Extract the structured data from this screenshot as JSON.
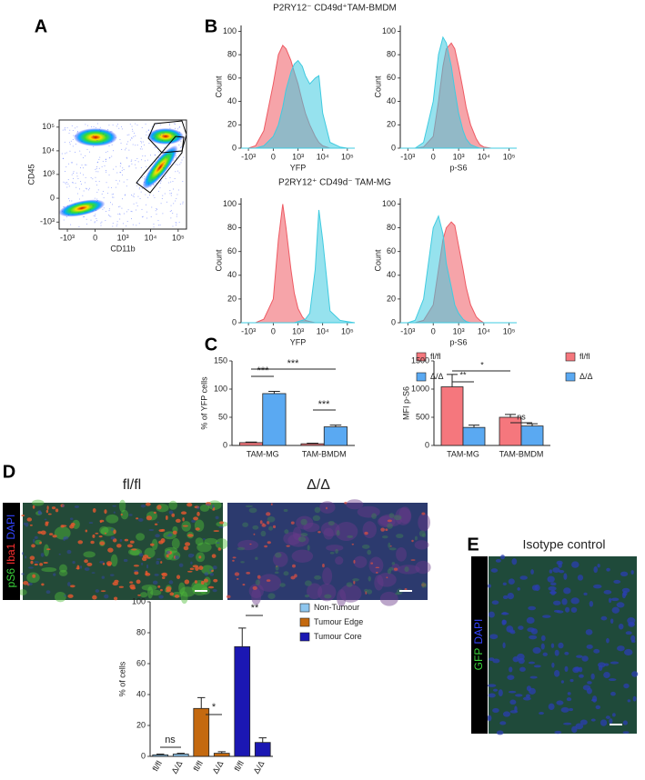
{
  "panel_labels": [
    "A",
    "B",
    "C",
    "D",
    "E"
  ],
  "section_titles": [
    "P2RY12⁻ CD49d⁺TAM-BMDM",
    "P2RY12⁺ CD49d⁻ TAM-MG"
  ],
  "chart_data": [
    {
      "type": "density",
      "x_label": "CD11b",
      "y_label": "CD45",
      "xscale": "symlog",
      "yscale": "symlog",
      "xlim": [
        -2000,
        200000
      ],
      "ylim": [
        -2000,
        200000
      ],
      "xticks": [
        {
          "value": -1000,
          "label": "-10³"
        },
        0,
        {
          "value": 1000,
          "label": "10³"
        },
        {
          "value": 10000,
          "label": "10⁴"
        },
        {
          "value": 100000,
          "label": "10⁵"
        }
      ],
      "yticks": [
        {
          "value": -1000,
          "label": "-10³"
        },
        0,
        {
          "value": 1000,
          "label": "10³"
        },
        {
          "value": 10000,
          "label": "10⁴"
        },
        {
          "value": 100000,
          "label": "10⁵"
        }
      ]
    },
    {
      "type": "area",
      "x_label": "YFP",
      "y_label": "Count",
      "xscale": "symlog",
      "xlim": [
        -2000,
        200000
      ],
      "ylim": [
        0,
        105
      ],
      "xticks": [
        {
          "value": -1000,
          "label": "-10³"
        },
        0,
        {
          "value": 1000,
          "label": "10³"
        },
        {
          "value": 10000,
          "label": "10⁴"
        },
        {
          "value": 100000,
          "label": "10⁵"
        }
      ],
      "yticks": [
        0,
        20,
        40,
        60,
        80,
        100
      ],
      "x": [
        -2000,
        -1000,
        -500,
        -200,
        0,
        100,
        200,
        300,
        500,
        700,
        1000,
        1500,
        2000,
        3000,
        5000,
        7000,
        10000,
        20000,
        50000,
        100000,
        200000
      ],
      "series": [
        {
          "color": "#ee5a63",
          "values": [
            0,
            0,
            2,
            15,
            55,
            80,
            88,
            85,
            75,
            65,
            55,
            40,
            30,
            20,
            10,
            5,
            2,
            0,
            0,
            0,
            0
          ]
        },
        {
          "color": "#3fcbe0",
          "values": [
            0,
            0,
            0,
            2,
            10,
            20,
            35,
            50,
            65,
            72,
            75,
            70,
            62,
            55,
            60,
            62,
            30,
            5,
            1,
            0,
            0
          ]
        }
      ]
    },
    {
      "type": "area",
      "x_label": "p-S6",
      "y_label": "Count",
      "xscale": "symlog",
      "xlim": [
        -2000,
        200000
      ],
      "ylim": [
        0,
        105
      ],
      "xticks": [
        {
          "value": -1000,
          "label": "-10³"
        },
        0,
        {
          "value": 1000,
          "label": "10³"
        },
        {
          "value": 10000,
          "label": "10⁴"
        },
        {
          "value": 100000,
          "label": "10⁵"
        }
      ],
      "yticks": [
        0,
        20,
        40,
        60,
        80,
        100
      ],
      "x": [
        -2000,
        -1000,
        -500,
        -200,
        0,
        100,
        200,
        300,
        500,
        700,
        1000,
        1500,
        2000,
        3000,
        5000,
        7000,
        10000,
        20000,
        50000,
        100000,
        200000
      ],
      "series": [
        {
          "color": "#ee5a63",
          "values": [
            0,
            0,
            0,
            1,
            10,
            40,
            70,
            85,
            90,
            85,
            70,
            50,
            35,
            20,
            8,
            3,
            1,
            0,
            0,
            0,
            0
          ]
        },
        {
          "color": "#3fcbe0",
          "values": [
            0,
            0,
            0,
            5,
            40,
            80,
            95,
            90,
            70,
            50,
            30,
            15,
            8,
            3,
            1,
            0,
            0,
            0,
            0,
            0,
            0
          ]
        }
      ]
    },
    {
      "type": "area",
      "x_label": "YFP",
      "y_label": "Count",
      "xscale": "symlog",
      "xlim": [
        -2000,
        200000
      ],
      "ylim": [
        0,
        105
      ],
      "xticks": [
        {
          "value": -1000,
          "label": "-10³"
        },
        0,
        {
          "value": 1000,
          "label": "10³"
        },
        {
          "value": 10000,
          "label": "10⁴"
        },
        {
          "value": 100000,
          "label": "10⁵"
        }
      ],
      "yticks": [
        0,
        20,
        40,
        60,
        80,
        100
      ],
      "x": [
        -2000,
        -1000,
        -500,
        -200,
        0,
        100,
        200,
        300,
        500,
        700,
        1000,
        1500,
        2000,
        3000,
        5000,
        7000,
        10000,
        20000,
        50000,
        100000,
        200000
      ],
      "series": [
        {
          "color": "#ee5a63",
          "values": [
            0,
            0,
            0,
            3,
            20,
            70,
            100,
            80,
            45,
            25,
            12,
            5,
            2,
            1,
            0,
            0,
            0,
            0,
            0,
            0,
            0
          ]
        },
        {
          "color": "#3fcbe0",
          "values": [
            0,
            0,
            0,
            0,
            0,
            0,
            0,
            0,
            0,
            0,
            1,
            2,
            3,
            8,
            45,
            95,
            70,
            10,
            2,
            1,
            0
          ]
        }
      ]
    },
    {
      "type": "area",
      "x_label": "p-S6",
      "y_label": "Count",
      "xscale": "symlog",
      "xlim": [
        -2000,
        200000
      ],
      "ylim": [
        0,
        105
      ],
      "xticks": [
        {
          "value": -1000,
          "label": "-10³"
        },
        0,
        {
          "value": 1000,
          "label": "10³"
        },
        {
          "value": 10000,
          "label": "10⁴"
        },
        {
          "value": 100000,
          "label": "10⁵"
        }
      ],
      "yticks": [
        0,
        20,
        40,
        60,
        80,
        100
      ],
      "x": [
        -2000,
        -1000,
        -500,
        -200,
        0,
        100,
        200,
        300,
        500,
        700,
        1000,
        1500,
        2000,
        3000,
        5000,
        7000,
        10000,
        20000,
        50000,
        100000,
        200000
      ],
      "series": [
        {
          "color": "#ee5a63",
          "values": [
            0,
            0,
            0,
            2,
            15,
            45,
            70,
            80,
            85,
            82,
            65,
            45,
            30,
            15,
            5,
            2,
            0,
            0,
            0,
            0,
            0
          ]
        },
        {
          "color": "#3fcbe0",
          "values": [
            0,
            0,
            2,
            20,
            80,
            90,
            75,
            50,
            30,
            15,
            8,
            3,
            1,
            0,
            0,
            0,
            0,
            0,
            0,
            0,
            0
          ]
        }
      ]
    },
    {
      "type": "bar",
      "y_label": "% of YFP cells",
      "categories": [
        "TAM-MG",
        "TAM-BMDM"
      ],
      "ylim": [
        0,
        150
      ],
      "yticks": [
        0,
        50,
        100,
        150
      ],
      "series": [
        {
          "name": "fl/fl",
          "color": "#f5777d",
          "values": [
            5,
            3
          ],
          "errors": [
            1,
            1
          ]
        },
        {
          "name": "Δ/Δ",
          "color": "#5aa9f2",
          "values": [
            92,
            33
          ],
          "errors": [
            4,
            3
          ]
        }
      ],
      "annotations": [
        "***",
        "***",
        "***"
      ],
      "legend": "right"
    },
    {
      "type": "bar",
      "y_label": "MFI p-S6",
      "categories": [
        "TAM-MG",
        "TAM-BMDM"
      ],
      "ylim": [
        0,
        1500
      ],
      "yticks": [
        0,
        500,
        1000,
        1500
      ],
      "series": [
        {
          "name": "fl/fl",
          "color": "#f5777d",
          "values": [
            1040,
            500
          ],
          "errors": [
            220,
            50
          ]
        },
        {
          "name": "Δ/Δ",
          "color": "#5aa9f2",
          "values": [
            320,
            345
          ],
          "errors": [
            40,
            40
          ]
        }
      ],
      "annotations": [
        "**",
        "*",
        "ns"
      ],
      "legend": "right"
    },
    {
      "type": "bar",
      "y_label": "% of cells",
      "categories": [
        "fl/fl",
        "Δ/Δ",
        "fl/fl",
        "Δ/Δ",
        "fl/fl",
        "Δ/Δ"
      ],
      "ylim": [
        0,
        100
      ],
      "yticks": [
        0,
        20,
        40,
        60,
        80,
        100
      ],
      "series": [
        {
          "name": "Non-Tumour",
          "color": "#8ec6ee",
          "values": [
            1,
            1.5,
            null,
            null,
            null,
            null
          ],
          "errors": [
            0.5,
            0.5,
            null,
            null,
            null,
            null
          ]
        },
        {
          "name": "Tumour Edge",
          "color": "#c4690f",
          "values": [
            null,
            null,
            31,
            2,
            null,
            null
          ],
          "errors": [
            null,
            null,
            7,
            1,
            null,
            null
          ]
        },
        {
          "name": "Tumour Core",
          "color": "#1b17b3",
          "values": [
            null,
            null,
            null,
            null,
            71,
            9
          ],
          "errors": [
            null,
            null,
            null,
            null,
            12,
            3
          ]
        }
      ],
      "annotations": [
        "ns",
        "*",
        "**"
      ],
      "legend": "right"
    }
  ],
  "panel_d": {
    "conditions": [
      "fl/fl",
      "Δ/Δ"
    ],
    "stains": [
      "pS6",
      "Iba1",
      "DAPI"
    ],
    "stain_colors": [
      "#3bd63b",
      "#ff3030",
      "#3344ff"
    ]
  },
  "panel_e": {
    "title": "Isotype control",
    "stains": [
      "GFP",
      "DAPI"
    ],
    "stain_colors": [
      "#3bd63b",
      "#3344ff"
    ]
  }
}
